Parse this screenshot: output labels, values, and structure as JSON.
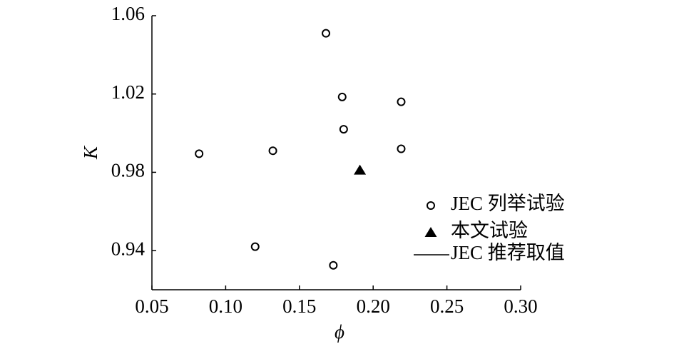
{
  "chart_data": {
    "type": "scatter",
    "xlabel": "ϕ",
    "ylabel": "K",
    "xlim": [
      0.05,
      0.3
    ],
    "xticks": [
      0.05,
      {
        "value": 0.1,
        "label": "0.10"
      },
      0.15,
      {
        "value": 0.2,
        "label": "0.20"
      },
      0.25,
      {
        "value": 0.3,
        "label": "0.30"
      }
    ],
    "ylim": [
      0.92,
      1.06
    ],
    "yticks": [
      0.94,
      0.98,
      1.02,
      1.06
    ],
    "grid": false,
    "legend": "lower right",
    "series": [
      {
        "name": "JEC 列举试验",
        "color": "#000000",
        "marker": "circle",
        "x": [
          0.168,
          0.179,
          0.219,
          0.18,
          0.219,
          0.082,
          0.132,
          0.12,
          0.173
        ],
        "values": [
          1.051,
          1.0185,
          1.016,
          1.002,
          0.992,
          0.9895,
          0.991,
          0.942,
          0.9325
        ]
      },
      {
        "name": "本文试验",
        "color": "#000000",
        "marker": "triangle",
        "x": [
          0.191
        ],
        "values": [
          0.981
        ]
      },
      {
        "name": "JEC 推荐取值",
        "color": "#000000",
        "marker": "line",
        "x": [],
        "values": []
      }
    ]
  }
}
